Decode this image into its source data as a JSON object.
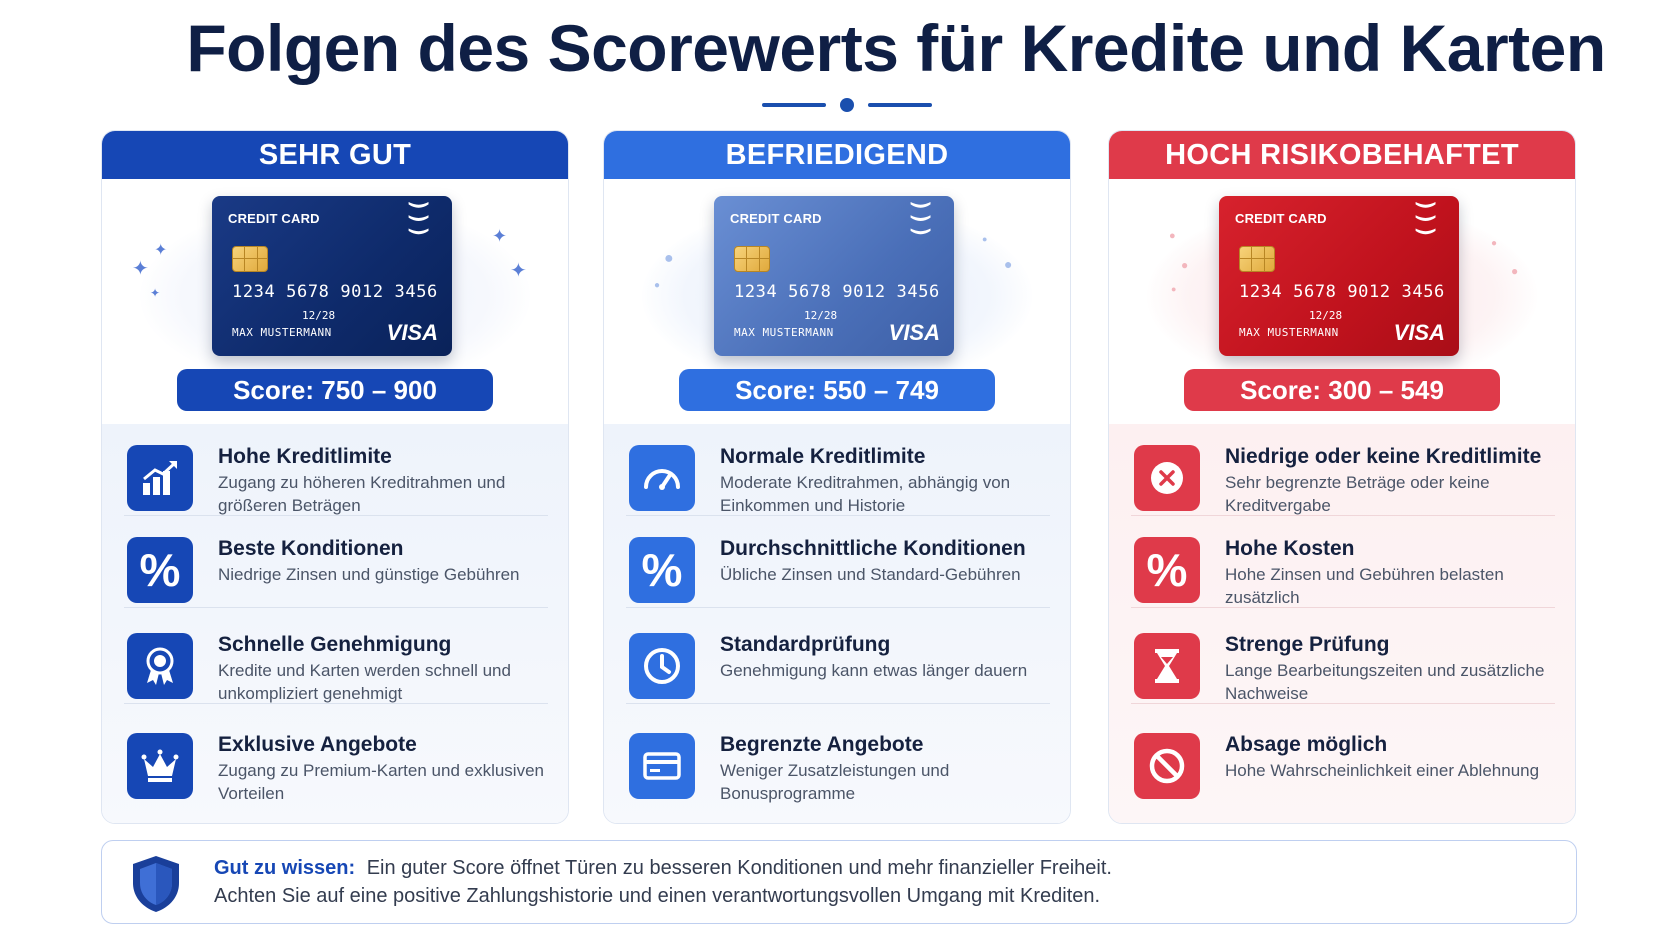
{
  "title": "Folgen des Scorewerts für Kredite und Karten",
  "colors": {
    "good": "#1647b5",
    "medium": "#2f6fe0",
    "risk": "#df3a4a"
  },
  "card": {
    "title": "CREDIT CARD",
    "number": "1234 5678 9012 3456",
    "expiry": "12/28",
    "holder": "MAX MUSTERMANN",
    "brand": "VISA"
  },
  "panels": [
    {
      "header": "SEHR GUT",
      "score": "Score: 750 – 900",
      "items": [
        {
          "icon": "bar-chart-up-icon",
          "title": "Hohe Kreditlimite",
          "desc": "Zugang zu höheren Kreditrahmen und größeren Beträgen"
        },
        {
          "icon": "percent-icon",
          "title": "Beste Konditionen",
          "desc": "Niedrige Zinsen und günstige Gebühren"
        },
        {
          "icon": "award-ribbon-icon",
          "title": "Schnelle Genehmigung",
          "desc": "Kredite und Karten werden schnell und unkompliziert genehmigt"
        },
        {
          "icon": "crown-icon",
          "title": "Exklusive Angebote",
          "desc": "Zugang zu Premium-Karten und exklusiven Vorteilen"
        }
      ]
    },
    {
      "header": "BEFRIEDIGEND",
      "score": "Score: 550 – 749",
      "items": [
        {
          "icon": "gauge-icon",
          "title": "Normale Kreditlimite",
          "desc": "Moderate Kreditrahmen, abhängig von Einkommen und Historie"
        },
        {
          "icon": "percent-icon",
          "title": "Durchschnittliche Konditionen",
          "desc": "Übliche Zinsen und Standard-Gebühren"
        },
        {
          "icon": "clock-icon",
          "title": "Standardprüfung",
          "desc": "Genehmigung kann etwas länger dauern"
        },
        {
          "icon": "card-icon",
          "title": "Begrenzte Angebote",
          "desc": "Weniger Zusatzleistungen und Bonusprogramme"
        }
      ]
    },
    {
      "header": "HOCH RISIKOBEHAFTET",
      "score": "Score: 300 – 549",
      "items": [
        {
          "icon": "x-circle-icon",
          "title": "Niedrige oder keine Kreditlimite",
          "desc": "Sehr begrenzte Beträge oder keine Kreditvergabe"
        },
        {
          "icon": "percent-icon",
          "title": "Hohe Kosten",
          "desc": "Hohe Zinsen und Gebühren belasten zusätzlich"
        },
        {
          "icon": "hourglass-icon",
          "title": "Strenge Prüfung",
          "desc": "Lange Bearbeitungszeiten und zusätzliche Nachweise"
        },
        {
          "icon": "prohibited-icon",
          "title": "Absage möglich",
          "desc": "Hohe Wahrscheinlichkeit einer Ablehnung"
        }
      ]
    }
  ],
  "footer": {
    "label": "Gut zu wissen:",
    "line1": "Ein guter Score öffnet Türen zu besseren Konditionen und mehr finanzieller Freiheit.",
    "line2": "Achten Sie auf eine positive Zahlungshistorie und einen verantwortungsvollen Umgang mit Krediten."
  }
}
